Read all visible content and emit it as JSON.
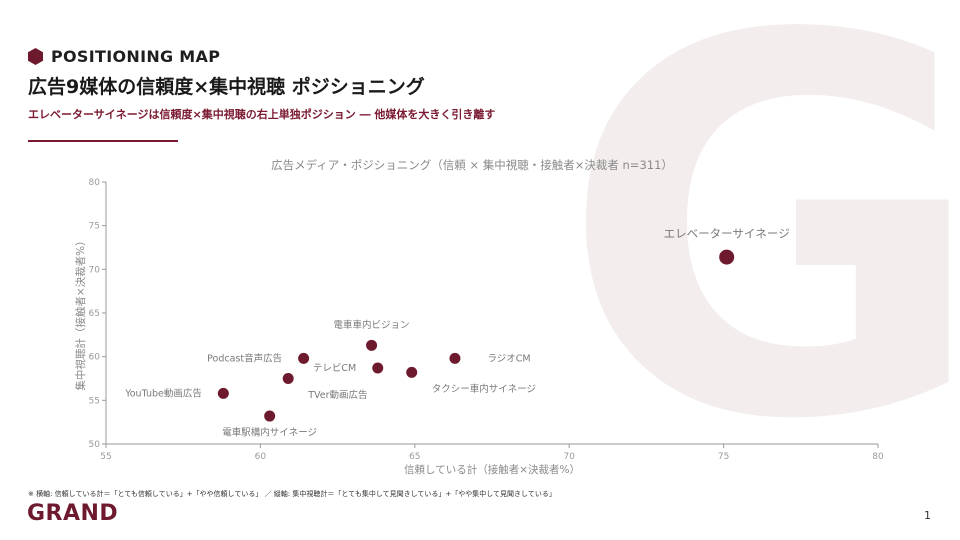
{
  "watermark": "G",
  "header": {
    "eyebrow": "POSITIONING MAP",
    "title": "広告9媒体の信頼度×集中視聴 ポジショニング",
    "subtitle": "エレベーターサイネージは信頼度×集中視聴の右上単独ポジション ― 他媒体を大きく引き離す"
  },
  "colors": {
    "accent": "#7a1a30",
    "point": "#6e1a2e",
    "axis": "#9a9a9a"
  },
  "chart_data": {
    "type": "scatter",
    "title": "広告メディア・ポジショニング（信頼 × 集中視聴・接触者×決裁者 n=311）",
    "xlabel": "信頼している計（接触者×決裁者%）",
    "ylabel": "集中視聴計（接触者×決裁者%）",
    "xlim": [
      55,
      80
    ],
    "ylim": [
      50,
      80
    ],
    "xticks": [
      55,
      60,
      65,
      70,
      75,
      80
    ],
    "yticks": [
      50,
      55,
      60,
      65,
      70,
      75,
      80
    ],
    "grid": false,
    "points": [
      {
        "label": "エレベーターサイネージ",
        "x": 75.1,
        "y": 71.4,
        "highlight": true,
        "label_pos": "above"
      },
      {
        "label": "電車車内ビジョン",
        "x": 63.6,
        "y": 61.3,
        "label_pos": "above"
      },
      {
        "label": "Podcast音声広告",
        "x": 61.4,
        "y": 59.8,
        "label_pos": "left"
      },
      {
        "label": "ラジオCM",
        "x": 66.3,
        "y": 59.8,
        "label_pos": "right"
      },
      {
        "label": "テレビCM",
        "x": 63.8,
        "y": 58.7,
        "label_pos": "left"
      },
      {
        "label": "タクシー車内サイネージ",
        "x": 64.9,
        "y": 58.2,
        "label_pos": "below-right"
      },
      {
        "label": "TVer動画広告",
        "x": 60.9,
        "y": 57.5,
        "label_pos": "below-right"
      },
      {
        "label": "YouTube動画広告",
        "x": 58.8,
        "y": 55.8,
        "label_pos": "left"
      },
      {
        "label": "電車駅構内サイネージ",
        "x": 60.3,
        "y": 53.2,
        "label_pos": "below"
      }
    ]
  },
  "footnote": "※ 横軸: 信頼している計＝「とても信頼している」+「やや信頼している」 ／ 縦軸: 集中視聴計＝「とても集中して見聞きしている」+「やや集中して見聞きしている」",
  "footer": {
    "logo": "GRAND",
    "page_number": "1"
  }
}
